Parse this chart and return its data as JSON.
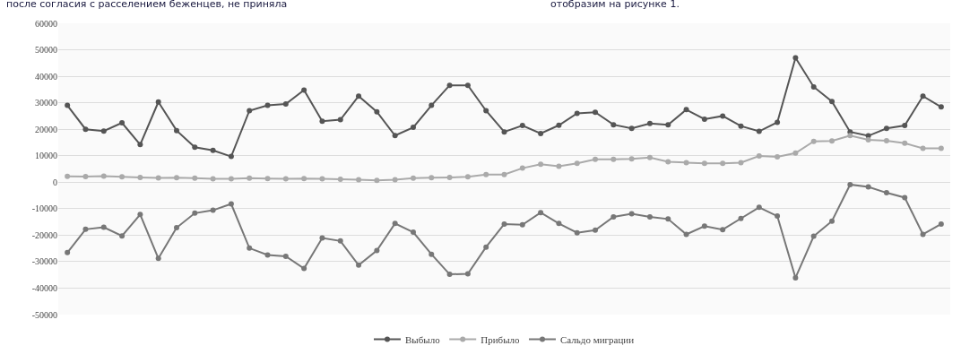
{
  "chart_data": {
    "type": "line",
    "annotations": [
      "после согласия с расселением беженцев, не приняла",
      "отобразим на рисунке 1."
    ],
    "categories": [
      null,
      null,
      null,
      null,
      null,
      null,
      null,
      null,
      null,
      null,
      null,
      null,
      null,
      null,
      null,
      null,
      null,
      null,
      null,
      null,
      null,
      null,
      null,
      null,
      null,
      null,
      null,
      null,
      null,
      null,
      null,
      null,
      null,
      null,
      null,
      null,
      null,
      null,
      null,
      null,
      null,
      null,
      null,
      null,
      null,
      null,
      null,
      null,
      null
    ],
    "series": [
      {
        "name": "Выбыло",
        "color": "#555555",
        "values": [
          29000,
          20000,
          19300,
          22400,
          14200,
          30300,
          19500,
          13200,
          12000,
          9700,
          27000,
          29000,
          29500,
          34800,
          23000,
          23600,
          32500,
          26600,
          17600,
          20700,
          29000,
          36600,
          36600,
          27000,
          19000,
          21400,
          18400,
          21500,
          26000,
          26400,
          21700,
          20300,
          22200,
          21700,
          27400,
          23800,
          25000,
          21200,
          19200,
          22600,
          47000,
          36000,
          30500,
          19000,
          17500,
          20300,
          21400,
          32500,
          28400
        ]
      },
      {
        "name": "Прибыло",
        "color": "#aaaaaa",
        "values": [
          2200,
          2100,
          2300,
          2000,
          1800,
          1600,
          1700,
          1500,
          1300,
          1300,
          1500,
          1400,
          1300,
          1400,
          1300,
          1100,
          900,
          700,
          900,
          1500,
          1700,
          1800,
          2000,
          2900,
          2900,
          5300,
          6800,
          6000,
          7100,
          8600,
          8600,
          8800,
          9300,
          7700,
          7400,
          7100,
          7100,
          7400,
          9900,
          9600,
          11000,
          15400,
          15600,
          17600,
          16000,
          15700,
          14700,
          12800,
          12800
        ]
      },
      {
        "name": "Сальдо миграции",
        "color": "#777777",
        "values": [
          -26600,
          -17800,
          -17000,
          -20300,
          -12200,
          -28800,
          -17200,
          -11700,
          -10600,
          -8200,
          -24900,
          -27500,
          -28000,
          -32600,
          -21100,
          -22200,
          -31300,
          -25800,
          -15600,
          -18900,
          -27200,
          -34800,
          -34600,
          -24500,
          -15800,
          -16100,
          -11500,
          -15600,
          -19100,
          -18100,
          -13100,
          -11900,
          -13100,
          -13900,
          -19700,
          -16600,
          -17900,
          -13700,
          -9500,
          -12800,
          -36100,
          -20400,
          -14700,
          -900,
          -1800,
          -4000,
          -5800,
          -19700,
          -15800
        ]
      }
    ],
    "ylim": [
      -50000,
      60000
    ],
    "yticks": [
      -50000,
      -40000,
      -30000,
      -20000,
      -10000,
      0,
      10000,
      20000,
      30000,
      40000,
      50000,
      60000
    ],
    "grid": "y",
    "legend": "bottom",
    "marker": "circle",
    "line_style": "solid"
  }
}
